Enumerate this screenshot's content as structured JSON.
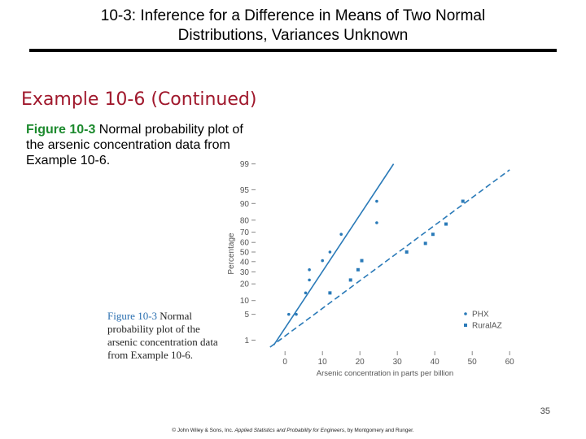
{
  "header": {
    "title_line1": "10-3:  Inference for a Difference in Means of Two Normal",
    "title_line2": "Distributions, Variances Unknown"
  },
  "example_heading": "Example 10-6 (Continued)",
  "caption": {
    "figure_label": "Figure 10-3",
    "text": " Normal probability plot of the arsenic concentration data from Example 10-6."
  },
  "inset_caption": {
    "figure_label": "Figure 10-3",
    "text": "  Normal probability plot of the arsenic concentration data from Example 10-6."
  },
  "page_number": "35",
  "footer": {
    "prefix": "© John Wiley & Sons, Inc.  ",
    "book": "Applied Statistics and Probability for Engineers",
    "suffix": ", by Montgomery and Runger."
  },
  "colors": {
    "title_red": "#a0182c",
    "figure_green": "#1d8a2e",
    "series_blue": "#2a7ab8"
  },
  "chart_data": {
    "type": "scatter",
    "title": "",
    "xlabel": "Arsenic concentration in parts per billion",
    "ylabel": "Percentage",
    "xlim": [
      -7,
      63
    ],
    "x_ticks": [
      0,
      10,
      20,
      30,
      40,
      50,
      60
    ],
    "y_ticks": [
      1,
      5,
      10,
      20,
      30,
      40,
      50,
      60,
      70,
      80,
      90,
      95,
      99
    ],
    "legend": [
      "PHX",
      "RuralAZ"
    ],
    "legend_position": "bottom-right",
    "series": [
      {
        "name": "PHX",
        "marker": "dot",
        "fit_line": {
          "x": [
            -3,
            29
          ],
          "y_percent": [
            0.7,
            99
          ]
        },
        "points": [
          {
            "x": 1,
            "y": 5
          },
          {
            "x": 3,
            "y": 5
          },
          {
            "x": 5.5,
            "y": 14
          },
          {
            "x": 6.5,
            "y": 23
          },
          {
            "x": 6.5,
            "y": 32
          },
          {
            "x": 10,
            "y": 41
          },
          {
            "x": 12,
            "y": 50
          },
          {
            "x": 15,
            "y": 68
          },
          {
            "x": 24.5,
            "y": 78
          },
          {
            "x": 24.5,
            "y": 91
          }
        ]
      },
      {
        "name": "RuralAZ",
        "marker": "square",
        "fit_line": {
          "x": [
            -4,
            60
          ],
          "y_percent": [
            0.6,
            98.5
          ]
        },
        "points": [
          {
            "x": 12,
            "y": 14
          },
          {
            "x": 17.5,
            "y": 23
          },
          {
            "x": 19.5,
            "y": 32
          },
          {
            "x": 20.5,
            "y": 41
          },
          {
            "x": 32.5,
            "y": 50
          },
          {
            "x": 37.5,
            "y": 59
          },
          {
            "x": 39.5,
            "y": 68
          },
          {
            "x": 43,
            "y": 77
          },
          {
            "x": 47.5,
            "y": 91
          }
        ]
      }
    ]
  }
}
